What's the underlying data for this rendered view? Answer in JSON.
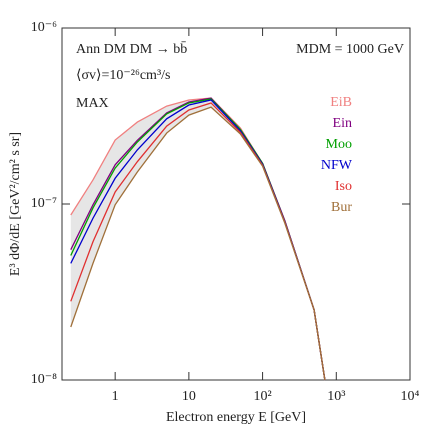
{
  "chart_data": {
    "type": "line",
    "title": "Ann DM DM → bb̄",
    "annotations": [
      "⟨σv⟩=10⁻²⁶cm³/s",
      "MAX",
      "MDM = 1000 GeV"
    ],
    "x_label": "Electron energy E [GeV]",
    "y_label": "E³ dΦ/dE [GeV²/cm² s sr]",
    "log_x": true,
    "log_y": true,
    "legend": "right",
    "x": [
      0.25,
      0.5,
      1,
      2,
      5,
      10,
      20,
      50,
      100,
      200,
      500,
      700
    ],
    "series": [
      {
        "name": "EiB",
        "color": "#f08080",
        "values": [
          8.66e-08,
          1.37e-07,
          2.31e-07,
          2.92e-07,
          3.6e-07,
          3.9e-07,
          4e-07,
          2.7e-07,
          1.7e-07,
          8.1e-08,
          2.5e-08,
          1e-08
        ]
      },
      {
        "name": "Ein",
        "color": "#800080",
        "values": [
          5.5e-08,
          9.9e-08,
          1.67e-07,
          2.3e-07,
          3.29e-07,
          3.8e-07,
          4e-07,
          2.65e-07,
          1.7e-07,
          8e-08,
          2.5e-08,
          1e-08
        ]
      },
      {
        "name": "Moo",
        "color": "#00a000",
        "values": [
          5.1e-08,
          9.5e-08,
          1.6e-07,
          2.25e-07,
          3.25e-07,
          3.75e-07,
          3.95e-07,
          2.65e-07,
          1.7e-07,
          8e-08,
          2.5e-08,
          1e-08
        ]
      },
      {
        "name": "NFW",
        "color": "#0000cc",
        "values": [
          4.6e-08,
          8.3e-08,
          1.4e-07,
          2.03e-07,
          3.05e-07,
          3.65e-07,
          3.9e-07,
          2.6e-07,
          1.68e-07,
          8e-08,
          2.5e-08,
          1e-08
        ]
      },
      {
        "name": "Iso",
        "color": "#e03030",
        "values": [
          2.8e-08,
          6.1e-08,
          1.17e-07,
          1.74e-07,
          2.77e-07,
          3.42e-07,
          3.75e-07,
          2.55e-07,
          1.66e-07,
          7.9e-08,
          2.5e-08,
          1e-08
        ]
      },
      {
        "name": "Bur",
        "color": "#a0703a",
        "values": [
          2e-08,
          4.6e-08,
          9.9e-08,
          1.52e-07,
          2.53e-07,
          3.2e-07,
          3.55e-07,
          2.5e-07,
          1.64e-07,
          7.8e-08,
          2.5e-08,
          1e-08
        ]
      }
    ],
    "xlim": [
      0.19,
      10000
    ],
    "ylim": [
      1e-08,
      1e-06
    ],
    "xticks": [
      1,
      10,
      {
        "value": 100,
        "label": "10²"
      },
      {
        "value": 1000,
        "label": "10³"
      },
      {
        "value": 10000,
        "label": "10⁴"
      }
    ],
    "yticks": [
      {
        "value": 1e-08,
        "label": "10⁻⁸"
      },
      {
        "value": 1e-07,
        "label": "10⁻⁷"
      },
      {
        "value": 1e-06,
        "label": "10⁻⁶"
      }
    ]
  }
}
